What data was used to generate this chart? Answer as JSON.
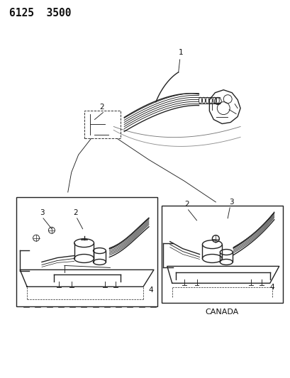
{
  "title": "6125  3500",
  "background_color": "#ffffff",
  "line_color": "#222222",
  "text_color": "#111111",
  "title_fontsize": 10.5,
  "label_fontsize": 7.5,
  "canada_label": "CANADA",
  "fig_width": 4.1,
  "fig_height": 5.33,
  "dpi": 100
}
